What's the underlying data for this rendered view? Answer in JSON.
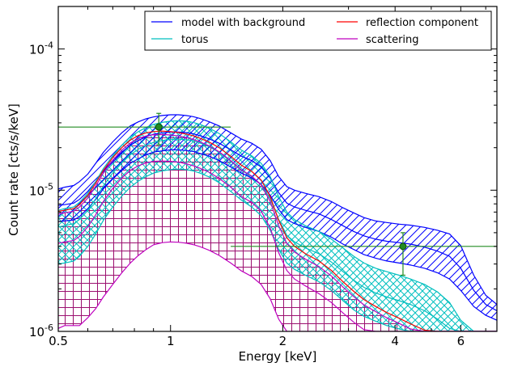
{
  "chart_data": {
    "type": "line",
    "xlabel": "Energy [keV]",
    "ylabel": "Count rate [cts/s/keV]",
    "xscale": "log",
    "yscale": "log",
    "xlim": [
      0.5,
      7.5
    ],
    "ylim": [
      1e-06,
      0.0002
    ],
    "grid": false,
    "legend_position": "top-right",
    "legend_columns": 2,
    "x_ticks": [
      {
        "value": 0.5,
        "label": "0.5"
      },
      {
        "value": 1,
        "label": "1"
      },
      {
        "value": 2,
        "label": "2"
      },
      {
        "value": 4,
        "label": "4"
      },
      {
        "value": 6,
        "label": "6"
      }
    ],
    "y_ticks": [
      {
        "value": 1e-06,
        "label": "10",
        "exp": "-6"
      },
      {
        "value": 1e-05,
        "label": "10",
        "exp": "-5"
      },
      {
        "value": 0.0001,
        "label": "10",
        "exp": "-4"
      }
    ],
    "x_grid": [
      0.5,
      0.52,
      0.55,
      0.57,
      0.6,
      0.63,
      0.66,
      0.7,
      0.74,
      0.78,
      0.82,
      0.86,
      0.9,
      0.95,
      1.0,
      1.05,
      1.1,
      1.15,
      1.2,
      1.27,
      1.35,
      1.45,
      1.55,
      1.65,
      1.75,
      1.85,
      1.95,
      2.05,
      2.15,
      2.3,
      2.5,
      2.7,
      2.9,
      3.1,
      3.3,
      3.55,
      3.8,
      4.1,
      4.4,
      4.8,
      5.2,
      5.6,
      6.0,
      6.5,
      7.0,
      7.5
    ],
    "series": [
      {
        "name": "model with background",
        "color": "#0000ff",
        "hatch": "diag",
        "upper": [
          1.02e-05,
          1.05e-05,
          1.08e-05,
          1.15e-05,
          1.3e-05,
          1.55e-05,
          1.85e-05,
          2.2e-05,
          2.55e-05,
          2.85e-05,
          3.05e-05,
          3.2e-05,
          3.3e-05,
          3.38e-05,
          3.42e-05,
          3.42e-05,
          3.38e-05,
          3.32e-05,
          3.22e-05,
          3.05e-05,
          2.85e-05,
          2.55e-05,
          2.3e-05,
          2.15e-05,
          1.95e-05,
          1.62e-05,
          1.25e-05,
          1.06e-05,
          1e-05,
          9.5e-06,
          9e-06,
          8.3e-06,
          7.5e-06,
          6.9e-06,
          6.4e-06,
          6.05e-06,
          5.9e-06,
          5.75e-06,
          5.65e-06,
          5.45e-06,
          5.2e-06,
          4.9e-06,
          4.05e-06,
          2.5e-06,
          1.8e-06,
          1.55e-06
        ],
        "lower": [
          6e-06,
          6.05e-06,
          6.15e-06,
          6.5e-06,
          7.4e-06,
          8.6e-06,
          1.02e-05,
          1.2e-05,
          1.38e-05,
          1.55e-05,
          1.67e-05,
          1.78e-05,
          1.86e-05,
          1.9e-05,
          1.93e-05,
          1.93e-05,
          1.91e-05,
          1.88e-05,
          1.82e-05,
          1.74e-05,
          1.62e-05,
          1.46e-05,
          1.32e-05,
          1.22e-05,
          1.1e-05,
          9.2e-06,
          7.3e-06,
          6.2e-06,
          5.8e-06,
          5.45e-06,
          5.1e-06,
          4.65e-06,
          4.15e-06,
          3.8e-06,
          3.5e-06,
          3.3e-06,
          3.15e-06,
          3.05e-06,
          2.95e-06,
          2.8e-06,
          2.6e-06,
          2.35e-06,
          1.95e-06,
          1.5e-06,
          1.3e-06,
          1.2e-06
        ],
        "center": [
          7.8e-06,
          7.9e-06,
          8.1e-06,
          8.6e-06,
          9.8e-06,
          1.15e-05,
          1.37e-05,
          1.62e-05,
          1.86e-05,
          2.08e-05,
          2.25e-05,
          2.39e-05,
          2.49e-05,
          2.55e-05,
          2.58e-05,
          2.58e-05,
          2.56e-05,
          2.51e-05,
          2.43e-05,
          2.31e-05,
          2.15e-05,
          1.93e-05,
          1.74e-05,
          1.62e-05,
          1.46e-05,
          1.22e-05,
          9.6e-06,
          8.1e-06,
          7.6e-06,
          7.2e-06,
          6.8e-06,
          6.2e-06,
          5.6e-06,
          5.1e-06,
          4.75e-06,
          4.5e-06,
          4.35e-06,
          4.25e-06,
          4.15e-06,
          3.95e-06,
          3.7e-06,
          3.4e-06,
          2.8e-06,
          1.95e-06,
          1.55e-06,
          1.4e-06
        ]
      },
      {
        "name": "torus",
        "color": "#00bfbf",
        "hatch": "cross",
        "upper": [
          7.2e-06,
          7.4e-06,
          7.6e-06,
          8.2e-06,
          9.5e-06,
          1.15e-05,
          1.42e-05,
          1.75e-05,
          2.08e-05,
          2.38e-05,
          2.6e-05,
          2.78e-05,
          2.92e-05,
          3.02e-05,
          3.08e-05,
          3.1e-05,
          3.08e-05,
          3.02e-05,
          2.92e-05,
          2.75e-05,
          2.52e-05,
          2.2e-05,
          1.92e-05,
          1.75e-05,
          1.55e-05,
          1.25e-05,
          9e-06,
          7e-06,
          6.2e-06,
          5.6e-06,
          5.1e-06,
          4.5e-06,
          3.9e-06,
          3.4e-06,
          3.05e-06,
          2.8e-06,
          2.65e-06,
          2.5e-06,
          2.35e-06,
          2.15e-06,
          1.9e-06,
          1.6e-06,
          1.2e-06,
          1e-06,
          1e-06,
          1e-06
        ],
        "lower": [
          3e-06,
          3.05e-06,
          3.15e-06,
          3.4e-06,
          4e-06,
          4.9e-06,
          6.1e-06,
          7.6e-06,
          9.1e-06,
          1.05e-05,
          1.16e-05,
          1.25e-05,
          1.32e-05,
          1.37e-05,
          1.4e-05,
          1.41e-05,
          1.4e-05,
          1.37e-05,
          1.32e-05,
          1.24e-05,
          1.13e-05,
          9.8e-06,
          8.5e-06,
          7.6e-06,
          6.6e-06,
          5.2e-06,
          3.8e-06,
          3.05e-06,
          2.75e-06,
          2.5e-06,
          2.25e-06,
          1.95e-06,
          1.65e-06,
          1.42e-06,
          1.28e-06,
          1.18e-06,
          1.1e-06,
          1.04e-06,
          1e-06,
          1e-06,
          1e-06,
          1e-06,
          1e-06,
          1e-06,
          1e-06,
          1e-06
        ],
        "center": [
          5.5e-06,
          5.6e-06,
          5.8e-06,
          6.2e-06,
          7.2e-06,
          8.7e-06,
          1.07e-05,
          1.32e-05,
          1.56e-05,
          1.78e-05,
          1.95e-05,
          2.08e-05,
          2.18e-05,
          2.25e-05,
          2.29e-05,
          2.3e-05,
          2.28e-05,
          2.24e-05,
          2.16e-05,
          2.03e-05,
          1.85e-05,
          1.6e-05,
          1.38e-05,
          1.25e-05,
          1.1e-05,
          8.7e-06,
          6.2e-06,
          4.8e-06,
          4.3e-06,
          3.9e-06,
          3.55e-06,
          3.1e-06,
          2.65e-06,
          2.3e-06,
          2.05e-06,
          1.87e-06,
          1.75e-06,
          1.65e-06,
          1.55e-06,
          1.4e-06,
          1.22e-06,
          1.05e-06,
          1e-06,
          1e-06,
          1e-06,
          1e-06
        ]
      },
      {
        "name": "reflection component",
        "color": "#ff0000",
        "hatch": "none",
        "center": [
          7.1e-06,
          7.2e-06,
          7.4e-06,
          7.9e-06,
          9.2e-06,
          1.12e-05,
          1.38e-05,
          1.7e-05,
          2e-05,
          2.26e-05,
          2.44e-05,
          2.55e-05,
          2.6e-05,
          2.62e-05,
          2.6e-05,
          2.56e-05,
          2.5e-05,
          2.43e-05,
          2.33e-05,
          2.19e-05,
          2e-05,
          1.74e-05,
          1.5e-05,
          1.36e-05,
          1.18e-05,
          9e-06,
          6.1e-06,
          4.6e-06,
          4e-06,
          3.55e-06,
          3.15e-06,
          2.7e-06,
          2.25e-06,
          1.92e-06,
          1.68e-06,
          1.5e-06,
          1.36e-06,
          1.24e-06,
          1.13e-06,
          1.02e-06,
          1e-06,
          1e-06,
          1e-06,
          1e-06,
          1e-06,
          1e-06
        ]
      },
      {
        "name": "scattering",
        "color": "#bf00bf",
        "hatch": "grid",
        "upper": [
          6.8e-06,
          6.9e-06,
          7.1e-06,
          7.6e-06,
          8.8e-06,
          1.07e-05,
          1.32e-05,
          1.63e-05,
          1.92e-05,
          2.16e-05,
          2.32e-05,
          2.42e-05,
          2.47e-05,
          2.48e-05,
          2.46e-05,
          2.42e-05,
          2.36e-05,
          2.29e-05,
          2.2e-05,
          2.06e-05,
          1.87e-05,
          1.62e-05,
          1.39e-05,
          1.26e-05,
          1.09e-05,
          8.3e-06,
          5.6e-06,
          4.2e-06,
          3.65e-06,
          3.25e-06,
          2.88e-06,
          2.47e-06,
          2.06e-06,
          1.76e-06,
          1.54e-06,
          1.38e-06,
          1.25e-06,
          1.14e-06,
          1.04e-06,
          1e-06,
          1e-06,
          1e-06,
          1e-06,
          1e-06,
          1e-06,
          1e-06
        ],
        "lower": [
          1.05e-06,
          1.1e-06,
          1.1e-06,
          1.1e-06,
          1.25e-06,
          1.45e-06,
          1.75e-06,
          2.15e-06,
          2.6e-06,
          3.05e-06,
          3.45e-06,
          3.8e-06,
          4.1e-06,
          4.25e-06,
          4.3e-06,
          4.28e-06,
          4.22e-06,
          4.12e-06,
          3.98e-06,
          3.75e-06,
          3.45e-06,
          3.05e-06,
          2.68e-06,
          2.45e-06,
          2.15e-06,
          1.7e-06,
          1.22e-06,
          1e-06,
          1e-06,
          1e-06,
          1e-06,
          1e-06,
          1e-06,
          1e-06,
          1e-06,
          1e-06,
          1e-06,
          1e-06,
          1e-06,
          1e-06,
          1e-06,
          1e-06,
          1e-06,
          1e-06,
          1e-06,
          1e-06
        ],
        "center": [
          4.2e-06,
          4.3e-06,
          4.4e-06,
          4.7e-06,
          5.5e-06,
          6.7e-06,
          8.3e-06,
          1.03e-05,
          1.22e-05,
          1.38e-05,
          1.49e-05,
          1.56e-05,
          1.6e-05,
          1.61e-05,
          1.6e-05,
          1.58e-05,
          1.54e-05,
          1.49e-05,
          1.43e-05,
          1.34e-05,
          1.21e-05,
          1.05e-05,
          9e-06,
          8.2e-06,
          7.1e-06,
          5.4e-06,
          3.6e-06,
          2.7e-06,
          2.35e-06,
          2.1e-06,
          1.85e-06,
          1.6e-06,
          1.35e-06,
          1.16e-06,
          1.03e-06,
          1e-06,
          1e-06,
          1e-06,
          1e-06,
          1e-06,
          1e-06,
          1e-06,
          1e-06,
          1e-06,
          1e-06,
          1e-06
        ]
      }
    ],
    "data_points": [
      {
        "x": 0.93,
        "xerr_low": 0.5,
        "xerr_high": 1.45,
        "y": 2.8e-05,
        "yerr_low": 2.1e-05,
        "yerr_high": 3.5e-05,
        "color": "#228b22"
      },
      {
        "x": 4.2,
        "xerr_low": 1.45,
        "xerr_high": 7.5,
        "y": 4e-06,
        "yerr_low": 2.5e-06,
        "yerr_high": 5e-06,
        "color": "#228b22"
      }
    ]
  }
}
